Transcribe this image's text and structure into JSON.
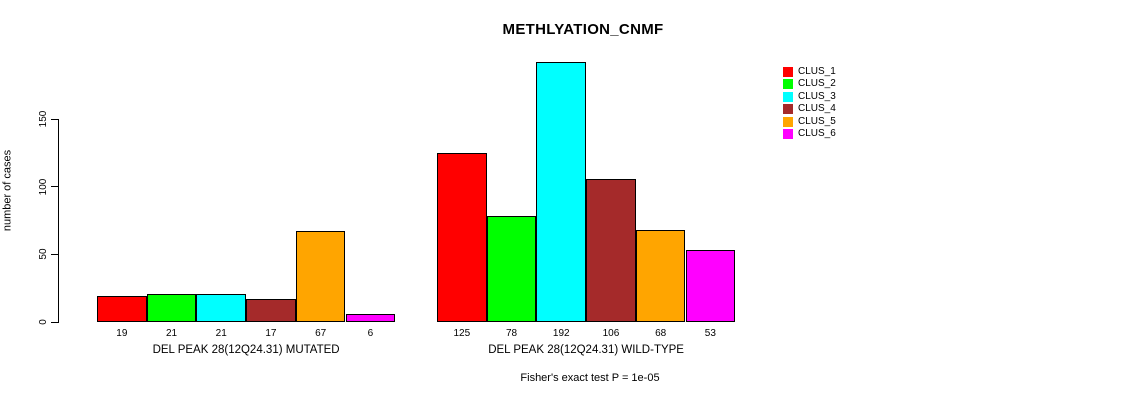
{
  "chart_data": {
    "type": "bar",
    "title": "METHLYATION_CNMF",
    "ylabel": "number of cases",
    "yticks": [
      0,
      50,
      100,
      150
    ],
    "ylim": [
      0,
      195
    ],
    "grid": false,
    "legend_position": "top-right",
    "legend": [
      "CLUS_1",
      "CLUS_2",
      "CLUS_3",
      "CLUS_4",
      "CLUS_5",
      "CLUS_6"
    ],
    "colors": [
      "#ff0000",
      "#00ff00",
      "#00ffff",
      "#a52a2a",
      "#ffa500",
      "#ff00ff"
    ],
    "groups": [
      {
        "label": "DEL PEAK 28(12Q24.31) MUTATED",
        "values": [
          19,
          21,
          21,
          17,
          67,
          6
        ]
      },
      {
        "label": "DEL PEAK 28(12Q24.31) WILD-TYPE",
        "values": [
          125,
          78,
          192,
          106,
          68,
          53
        ]
      }
    ],
    "footnote": "Fisher's exact test P = 1e-05"
  }
}
